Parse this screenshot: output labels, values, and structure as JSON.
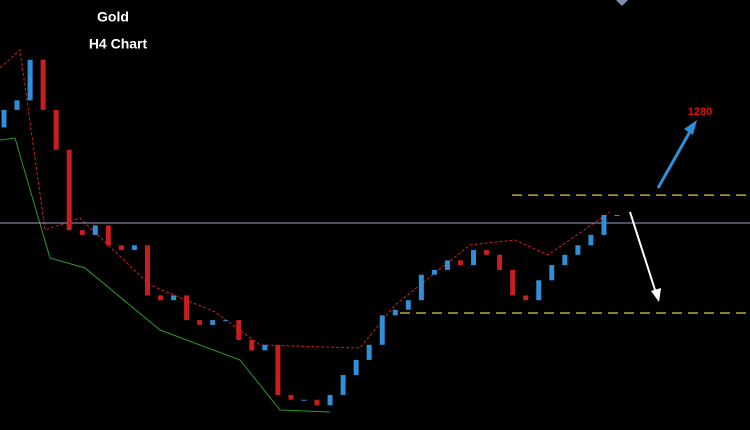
{
  "chart_data": {
    "type": "candlestick",
    "title": "Gold",
    "subtitle": "H4 Chart",
    "annotation": "1280",
    "ylim": [
      1240,
      1294
    ],
    "series": [
      {
        "name": "Gold",
        "up_color": "#2f8fd8",
        "down_color": "#c81e1e",
        "open": [
          1278.0,
          1280.2,
          1281.4,
          1286.5,
          1280.2,
          1275.2,
          1265.1,
          1264.5,
          1265.7,
          1263.2,
          1262.6,
          1263.2,
          1256.9,
          1256.3,
          1256.9,
          1253.8,
          1253.2,
          1253.8,
          1253.8,
          1251.3,
          1250.0,
          1250.7,
          1244.4,
          1243.8,
          1243.8,
          1243.1,
          1244.4,
          1246.9,
          1248.8,
          1250.7,
          1254.4,
          1255.1,
          1256.3,
          1259.5,
          1260.1,
          1261.3,
          1260.7,
          1262.6,
          1262.0,
          1260.1,
          1256.9,
          1256.3,
          1258.8,
          1260.7,
          1262.0,
          1263.2,
          1264.5,
          1267.0
        ],
        "close": [
          1280.2,
          1281.4,
          1286.5,
          1280.2,
          1275.2,
          1265.1,
          1264.5,
          1265.7,
          1263.2,
          1262.6,
          1263.2,
          1256.9,
          1256.3,
          1256.9,
          1253.8,
          1253.2,
          1253.8,
          1253.8,
          1251.3,
          1250.0,
          1250.7,
          1244.4,
          1243.8,
          1243.8,
          1243.1,
          1244.4,
          1246.9,
          1248.8,
          1250.7,
          1254.4,
          1255.1,
          1256.3,
          1259.5,
          1260.1,
          1261.3,
          1260.7,
          1262.6,
          1262.0,
          1260.1,
          1256.9,
          1256.3,
          1258.8,
          1260.7,
          1262.0,
          1263.2,
          1264.5,
          1267.0,
          1267.0
        ]
      }
    ],
    "levels": [
      {
        "value": 1266.0,
        "color": "#9aa0c8",
        "style": "solid"
      },
      {
        "value": 1269.5,
        "color": "#b8a832",
        "style": "dashed"
      },
      {
        "value": 1254.7,
        "color": "#b8a832",
        "style": "dashed"
      }
    ]
  }
}
